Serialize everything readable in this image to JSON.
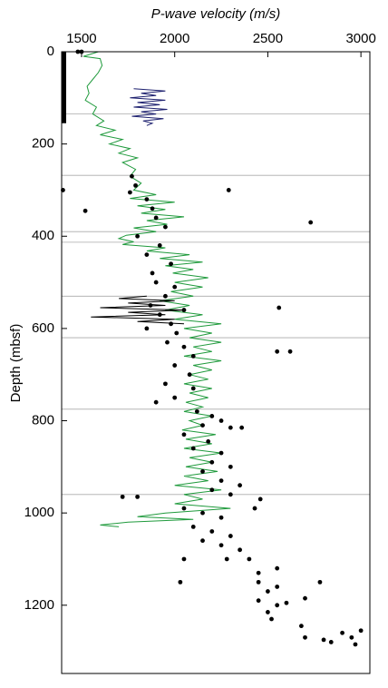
{
  "chart_data": {
    "type": "line",
    "title": "P-wave velocity (m/s)",
    "y_label": "Depth (mbsf)",
    "xlim": [
      1393,
      3048
    ],
    "ylim": [
      0,
      1348
    ],
    "xticks": [
      1500,
      2000,
      2500,
      3000
    ],
    "yticks": [
      0,
      200,
      400,
      600,
      800,
      1000,
      1200
    ],
    "reference_depths": [
      135,
      268,
      390,
      413,
      530,
      620,
      775,
      960
    ],
    "core_interval": [
      0,
      155
    ],
    "series": [
      {
        "color": "#1f9a3c",
        "x": [
          1590,
          1510,
          1600,
          1610,
          1590,
          1560,
          1530,
          1540,
          1520,
          1580,
          1560,
          1620,
          1580,
          1680,
          1600,
          1720,
          1650,
          1760,
          1700,
          1800,
          1720,
          1790,
          1760,
          1820,
          1780,
          1900,
          1760,
          2000,
          1800,
          1950,
          1820,
          2050,
          1850,
          1960,
          1780,
          1900,
          1740,
          1700,
          1780,
          1720,
          1950,
          1850,
          2080,
          1920,
          2150,
          1950,
          2100,
          1990,
          2180,
          2000,
          2150,
          1980,
          2100,
          1920,
          2080,
          1950,
          2150,
          2000,
          2250,
          2050,
          2200,
          2080,
          2250,
          2100,
          2200,
          2050,
          2250,
          2100,
          2200,
          2080,
          2180,
          2050,
          2200,
          2080,
          2180,
          2060,
          2150,
          2050,
          2200,
          2080,
          2150,
          2040,
          2220,
          2060,
          2200,
          2050,
          2250,
          2080,
          2200,
          2060,
          2230,
          2050,
          2180,
          2000,
          2250,
          2050,
          2150,
          2000,
          2300,
          1950,
          1800,
          2100,
          1750,
          1600,
          1700
        ],
        "y": [
          0,
          10,
          15,
          30,
          45,
          60,
          75,
          90,
          105,
          120,
          135,
          150,
          160,
          170,
          180,
          190,
          200,
          210,
          220,
          230,
          240,
          255,
          270,
          285,
          300,
          310,
          318,
          326,
          334,
          342,
          350,
          358,
          366,
          374,
          382,
          390,
          398,
          405,
          412,
          418,
          425,
          432,
          440,
          448,
          456,
          464,
          472,
          480,
          490,
          500,
          510,
          520,
          530,
          540,
          550,
          560,
          570,
          580,
          590,
          600,
          610,
          620,
          630,
          640,
          650,
          660,
          670,
          680,
          690,
          700,
          710,
          720,
          730,
          740,
          750,
          760,
          770,
          780,
          790,
          800,
          810,
          820,
          830,
          840,
          850,
          860,
          870,
          880,
          890,
          900,
          910,
          920,
          930,
          940,
          950,
          960,
          970,
          980,
          990,
          1000,
          1008,
          1014,
          1020,
          1026,
          1030
        ]
      },
      {
        "color": "#1c1f6e",
        "x": [
          1780,
          1950,
          1820,
          1900,
          1760,
          1950,
          1800,
          1920,
          1780,
          1960,
          1820,
          1900,
          1770,
          1940,
          1830,
          1880,
          1850
        ],
        "y": [
          80,
          85,
          90,
          95,
          100,
          105,
          110,
          115,
          120,
          125,
          130,
          135,
          140,
          145,
          150,
          155,
          160
        ]
      },
      {
        "color": "#000000",
        "x": [
          1850,
          1700,
          2000,
          1750,
          1950,
          1600,
          2050,
          1750,
          1950,
          1550,
          2000,
          1800,
          2050
        ],
        "y": [
          530,
          535,
          540,
          545,
          550,
          555,
          560,
          565,
          570,
          575,
          580,
          585,
          590
        ]
      }
    ],
    "points": {
      "color": "#000000",
      "x": [
        1480,
        1500,
        1400,
        1520,
        1770,
        1790,
        1760,
        2290,
        2730,
        1850,
        1880,
        1900,
        1950,
        1800,
        1920,
        1850,
        1980,
        1880,
        1900,
        2000,
        1950,
        1870,
        2050,
        1920,
        1980,
        1850,
        2010,
        1960,
        2050,
        2100,
        2000,
        2080,
        1950,
        2100,
        2000,
        1900,
        2120,
        2200,
        2150,
        2250,
        2300,
        2360,
        2050,
        2180,
        2100,
        2250,
        2200,
        2300,
        2150,
        2250,
        2350,
        2200,
        2300,
        2460,
        2430,
        1720,
        1800,
        2050,
        2150,
        2250,
        2100,
        2200,
        2300,
        2150,
        2250,
        2350,
        2400,
        2280,
        2050,
        2450,
        2550,
        2030,
        2450,
        2550,
        2500,
        2450,
        2550,
        2600,
        2780,
        2700,
        2500,
        2520,
        2680,
        2700,
        2800,
        2840,
        2900,
        2950,
        2970,
        3000,
        2560,
        2620,
        2550
      ],
      "y": [
        0,
        0,
        300,
        345,
        270,
        290,
        305,
        300,
        370,
        320,
        340,
        360,
        380,
        400,
        420,
        440,
        460,
        480,
        500,
        510,
        530,
        550,
        560,
        570,
        590,
        600,
        610,
        630,
        640,
        660,
        680,
        700,
        720,
        730,
        750,
        760,
        780,
        790,
        810,
        800,
        815,
        815,
        830,
        845,
        860,
        870,
        890,
        900,
        910,
        930,
        940,
        950,
        960,
        970,
        990,
        965,
        965,
        990,
        1000,
        1010,
        1030,
        1040,
        1050,
        1060,
        1070,
        1080,
        1100,
        1100,
        1100,
        1130,
        1120,
        1150,
        1150,
        1160,
        1170,
        1190,
        1200,
        1195,
        1150,
        1185,
        1215,
        1230,
        1245,
        1270,
        1275,
        1280,
        1260,
        1270,
        1285,
        1255,
        555,
        650,
        650
      ]
    }
  }
}
